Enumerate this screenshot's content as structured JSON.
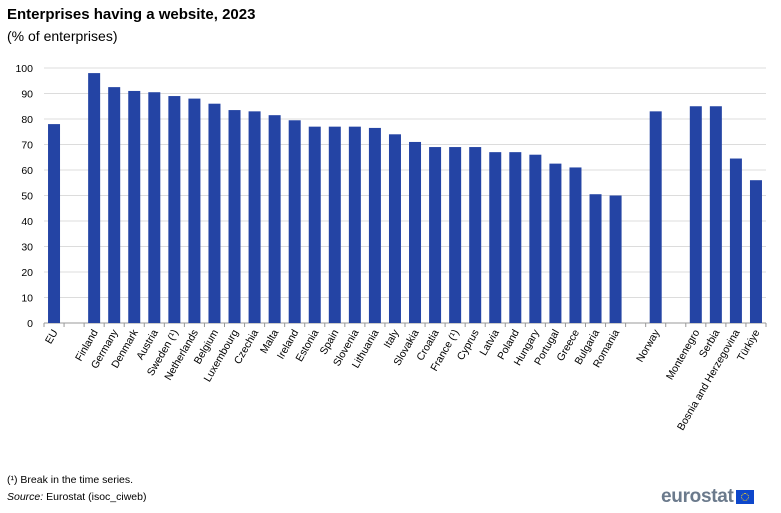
{
  "chart_data": {
    "type": "bar",
    "title": "Enterprises having a website, 2023",
    "subtitle": "(% of enterprises)",
    "categories": [
      "EU",
      "",
      "Finland",
      "Germany",
      "Denmark",
      "Austria",
      "Sweden (¹)",
      "Netherlands",
      "Belgium",
      "Luxembourg",
      "Czechia",
      "Malta",
      "Ireland",
      "Estonia",
      "Spain",
      "Slovenia",
      "Lithuania",
      "Italy",
      "Slovakia",
      "Croatia",
      "France (¹)",
      "Cyprus",
      "Latvia",
      "Poland",
      "Hungary",
      "Portugal",
      "Greece",
      "Bulgaria",
      "Romania",
      "",
      "Norway",
      "",
      "Montenegro",
      "Serbia",
      "Bosnia and Herzegovina",
      "Türkiye"
    ],
    "values": [
      78,
      null,
      98,
      92.5,
      91,
      90.5,
      89,
      88,
      86,
      83.5,
      83,
      81.5,
      79.5,
      77,
      77,
      77,
      76.5,
      74,
      71,
      69,
      69,
      69,
      67,
      67,
      66,
      62.5,
      61,
      50.5,
      50,
      null,
      83,
      null,
      85,
      85,
      64.5,
      56
    ],
    "ylim": [
      0,
      100
    ],
    "yticks": [
      0,
      10,
      20,
      30,
      40,
      50,
      60,
      70,
      80,
      90,
      100
    ],
    "grid": true,
    "bar_color": "#2444a4"
  },
  "footnote": "(¹) Break in the time series.",
  "source_label": "Source:",
  "source_text": " Eurostat (isoc_ciweb)",
  "logo_text": "eurostat"
}
